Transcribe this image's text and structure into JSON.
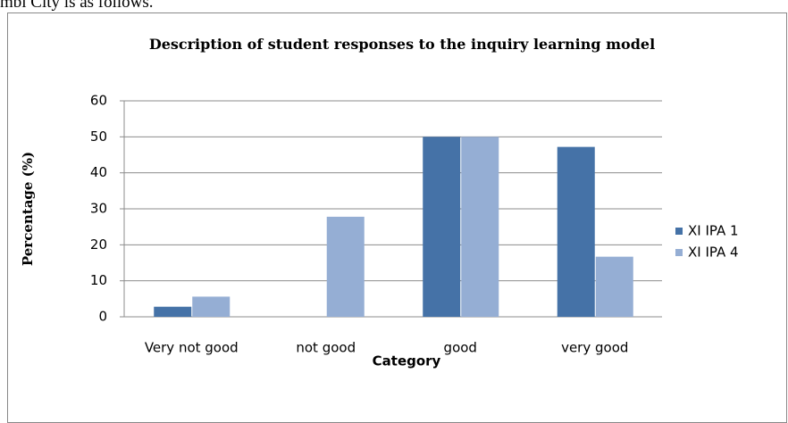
{
  "lead_text": "mbi City is as follows.",
  "chart_data": {
    "type": "bar",
    "title": "Description of student responses to the inquiry learning model",
    "x_label": "Category",
    "y_label": "Percentage (%)",
    "categories": [
      "Very not good",
      "not good",
      "good",
      "very good"
    ],
    "series": [
      {
        "name": "XI IPA 1",
        "color": "#4572a7",
        "values": [
          2.8,
          0,
          50,
          47.2
        ]
      },
      {
        "name": "XI IPA 4",
        "color": "#95aed4",
        "values": [
          5.6,
          27.8,
          50,
          16.7
        ]
      }
    ],
    "ylim": [
      0,
      60
    ],
    "yticks": [
      0,
      10,
      20,
      30,
      40,
      50,
      60
    ],
    "grid": true,
    "legend": "right"
  }
}
